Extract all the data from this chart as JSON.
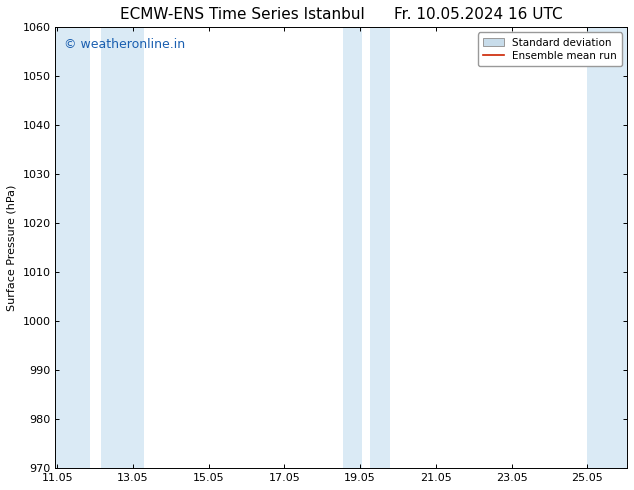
{
  "title": "ECMW-ENS Time Series Istanbul",
  "title2": "Fr. 10.05.2024 16 UTC",
  "ylabel": "Surface Pressure (hPa)",
  "ylim": [
    970,
    1060
  ],
  "yticks": [
    970,
    980,
    990,
    1000,
    1010,
    1020,
    1030,
    1040,
    1050,
    1060
  ],
  "xlim_start": 11.0,
  "xlim_end": 26.1,
  "xtick_labels": [
    "11.05",
    "13.05",
    "15.05",
    "17.05",
    "19.05",
    "21.05",
    "23.05",
    "25.05"
  ],
  "xtick_positions": [
    11.05,
    13.05,
    15.05,
    17.05,
    19.05,
    21.05,
    23.05,
    25.05
  ],
  "shaded_bands": [
    {
      "x_start": 11.0,
      "x_end": 11.9,
      "color": "#daeaf5"
    },
    {
      "x_start": 12.2,
      "x_end": 13.35,
      "color": "#daeaf5"
    },
    {
      "x_start": 18.6,
      "x_end": 19.1,
      "color": "#daeaf5"
    },
    {
      "x_start": 19.3,
      "x_end": 19.85,
      "color": "#daeaf5"
    },
    {
      "x_start": 25.05,
      "x_end": 26.1,
      "color": "#daeaf5"
    }
  ],
  "watermark_text": "© weatheronline.in",
  "watermark_color": "#1a5fb0",
  "watermark_fontsize": 9,
  "legend_std_label": "Standard deviation",
  "legend_mean_label": "Ensemble mean run",
  "legend_std_facecolor": "#c8dcea",
  "legend_std_edgecolor": "#999999",
  "legend_mean_color": "#cc2200",
  "background_color": "#ffffff",
  "plot_bg_color": "#ffffff",
  "title_fontsize": 11,
  "axis_fontsize": 8,
  "ylabel_fontsize": 8,
  "tick_color": "#000000"
}
